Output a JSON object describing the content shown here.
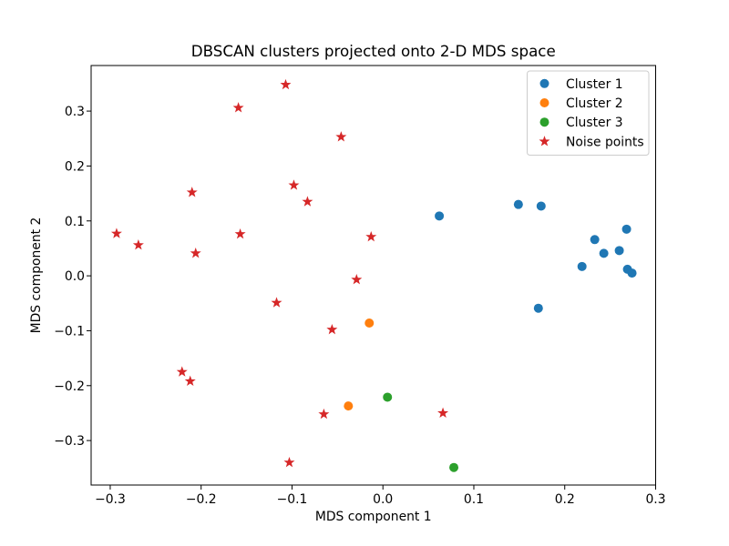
{
  "chart_data": {
    "type": "scatter",
    "title": "DBSCAN clusters projected onto 2-D MDS space",
    "xlabel": "MDS component 1",
    "ylabel": "MDS component 2",
    "xlim": [
      -0.321,
      0.3
    ],
    "ylim": [
      -0.381,
      0.383
    ],
    "xtick_values": [
      -0.3,
      -0.2,
      -0.1,
      0.0,
      0.1,
      0.2,
      0.3
    ],
    "xtick_labels": [
      "−0.3",
      "−0.2",
      "−0.1",
      "0.0",
      "0.1",
      "0.2",
      "0.3"
    ],
    "ytick_values": [
      -0.3,
      -0.2,
      -0.1,
      0.0,
      0.1,
      0.2,
      0.3
    ],
    "ytick_labels": [
      "−0.3",
      "−0.2",
      "−0.1",
      "0.0",
      "0.1",
      "0.2",
      "0.3"
    ],
    "grid": false,
    "legend": {
      "position": "upper right",
      "entries": [
        "Cluster 1",
        "Cluster 2",
        "Cluster 3",
        "Noise points"
      ]
    },
    "series": [
      {
        "name": "Cluster 1",
        "marker": "circle",
        "color": "#1f77b4",
        "points": [
          [
            0.062,
            0.109
          ],
          [
            0.149,
            0.13
          ],
          [
            0.174,
            0.127
          ],
          [
            0.171,
            -0.059
          ],
          [
            0.219,
            0.017
          ],
          [
            0.233,
            0.066
          ],
          [
            0.243,
            0.041
          ],
          [
            0.26,
            0.046
          ],
          [
            0.268,
            0.085
          ],
          [
            0.269,
            0.012
          ],
          [
            0.274,
            0.005
          ]
        ]
      },
      {
        "name": "Cluster 2",
        "marker": "circle",
        "color": "#ff7f0e",
        "points": [
          [
            -0.015,
            -0.086
          ],
          [
            -0.038,
            -0.237
          ]
        ]
      },
      {
        "name": "Cluster 3",
        "marker": "circle",
        "color": "#2ca02c",
        "points": [
          [
            0.005,
            -0.221
          ],
          [
            0.078,
            -0.349
          ]
        ]
      },
      {
        "name": "Noise points",
        "marker": "star",
        "color": "#d62728",
        "points": [
          [
            -0.293,
            0.077
          ],
          [
            -0.269,
            0.056
          ],
          [
            -0.21,
            0.152
          ],
          [
            -0.206,
            0.041
          ],
          [
            -0.221,
            -0.175
          ],
          [
            -0.212,
            -0.192
          ],
          [
            -0.159,
            0.306
          ],
          [
            -0.157,
            0.076
          ],
          [
            -0.107,
            0.348
          ],
          [
            -0.098,
            0.165
          ],
          [
            -0.083,
            0.135
          ],
          [
            -0.046,
            0.253
          ],
          [
            -0.117,
            -0.049
          ],
          [
            -0.029,
            -0.007
          ],
          [
            -0.013,
            0.071
          ],
          [
            -0.056,
            -0.098
          ],
          [
            -0.065,
            -0.252
          ],
          [
            -0.103,
            -0.34
          ],
          [
            0.066,
            -0.25
          ]
        ]
      }
    ]
  }
}
